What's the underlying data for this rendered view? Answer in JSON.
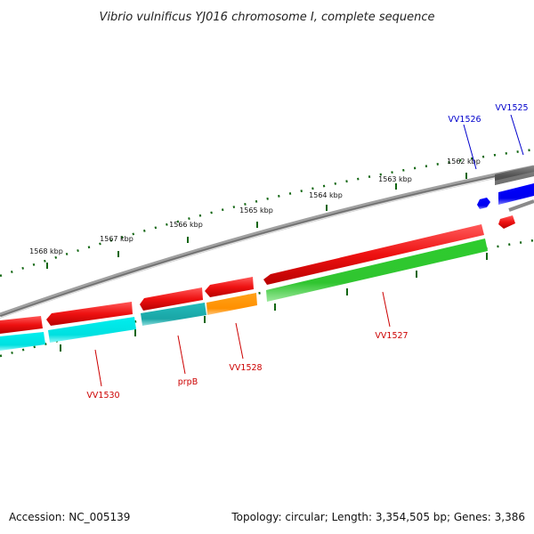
{
  "title": "Vibrio vulnificus YJ016 chromosome I, complete sequence",
  "accession_text": "Accession: NC_005139",
  "topology_text": "Topology: circular; Length: 3,354,505 bp; Genes: 3,386",
  "scale_labels": [
    "1562 kbp",
    "1563 kbp",
    "1564 kbp",
    "1565 kbp",
    "1566 kbp",
    "1567 kbp",
    "1568 kbp"
  ],
  "genes": [
    {
      "label": "VV1525",
      "color": "#0000cc"
    },
    {
      "label": "VV1526",
      "color": "#0000cc"
    },
    {
      "label": "VV1527",
      "color": "#cc0000"
    },
    {
      "label": "VV1528",
      "color": "#cc0000"
    },
    {
      "label": "prpB",
      "color": "#cc0000"
    },
    {
      "label": "VV1530",
      "color": "#cc0000"
    }
  ],
  "colors": {
    "backbone": "#8a8a8a",
    "cds_red": "#ee1111",
    "cds_cyan": "#00e5e5",
    "cds_teal": "#1fb3b3",
    "cds_orange": "#ff9900",
    "cds_green": "#33cc33",
    "cds_blue": "#0000ff",
    "cds_gray": "#666666",
    "tick_green": "#116611"
  }
}
